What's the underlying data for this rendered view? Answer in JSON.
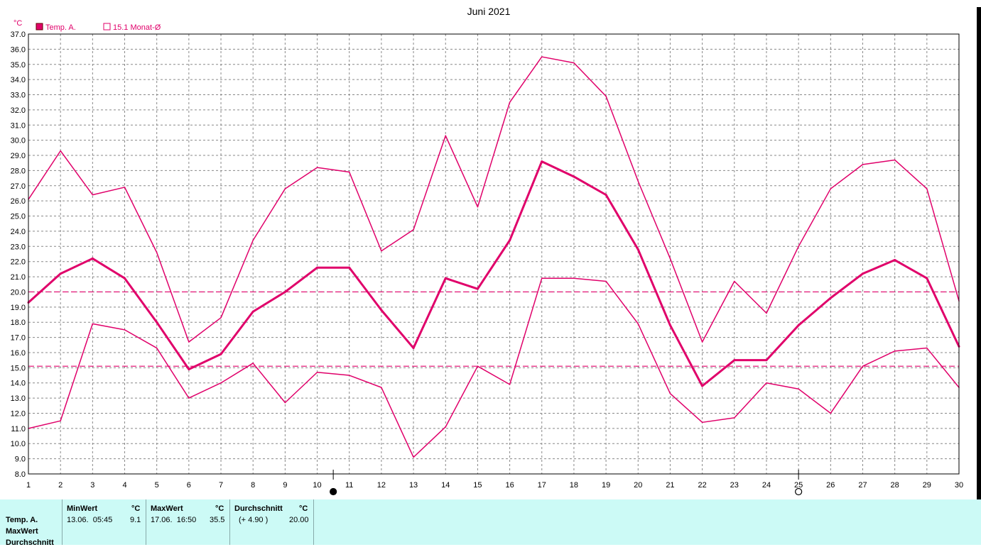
{
  "chart_data": {
    "type": "line",
    "title": "Juni 2021",
    "unit": "°C",
    "ylim": [
      8.0,
      37.0
    ],
    "yticks": [
      8.0,
      9.0,
      10.0,
      11.0,
      12.0,
      13.0,
      14.0,
      15.0,
      16.0,
      17.0,
      18.0,
      19.0,
      20.0,
      21.0,
      22.0,
      23.0,
      24.0,
      25.0,
      26.0,
      27.0,
      28.0,
      29.0,
      30.0,
      31.0,
      32.0,
      33.0,
      34.0,
      35.0,
      36.0,
      37.0
    ],
    "x": [
      1,
      2,
      3,
      4,
      5,
      6,
      7,
      8,
      9,
      10,
      11,
      12,
      13,
      14,
      15,
      16,
      17,
      18,
      19,
      20,
      21,
      22,
      23,
      24,
      25,
      26,
      27,
      28,
      29,
      30
    ],
    "grid": true,
    "legend": [
      {
        "label": "Temp. A.",
        "color": "#e0006a",
        "filled": true
      },
      {
        "label": "15.1 Monat-Ø",
        "color": "#e0006a",
        "filled": false
      }
    ],
    "series": [
      {
        "role": "max",
        "width": 1.5,
        "values": [
          26.1,
          29.3,
          26.4,
          26.9,
          22.6,
          16.7,
          18.3,
          23.4,
          26.8,
          28.2,
          27.9,
          22.7,
          24.1,
          30.3,
          25.6,
          32.5,
          35.5,
          35.1,
          32.9,
          27.3,
          22.2,
          16.7,
          20.7,
          18.6,
          23.0,
          26.8,
          28.4,
          28.7,
          26.8,
          19.4
        ]
      },
      {
        "role": "avg",
        "width": 3,
        "values": [
          19.3,
          21.2,
          22.2,
          20.9,
          18.0,
          14.9,
          15.9,
          18.7,
          20.0,
          21.6,
          21.6,
          18.8,
          16.3,
          20.9,
          20.2,
          23.4,
          28.6,
          27.6,
          26.4,
          22.8,
          17.8,
          13.8,
          15.5,
          15.5,
          17.8,
          19.6,
          21.2,
          22.1,
          20.9,
          16.4
        ]
      },
      {
        "role": "min",
        "width": 1.5,
        "values": [
          11.0,
          11.5,
          17.9,
          17.5,
          16.3,
          13.0,
          14.0,
          15.3,
          12.7,
          14.7,
          14.5,
          13.7,
          9.1,
          11.1,
          15.1,
          13.9,
          20.9,
          20.9,
          20.7,
          17.9,
          13.3,
          11.4,
          11.7,
          14.0,
          13.6,
          12.0,
          15.1,
          16.1,
          16.3,
          13.7
        ]
      }
    ],
    "reference_lines": [
      {
        "value": 20.0,
        "style": "dashed",
        "color": "#e0006a"
      },
      {
        "value": 15.1,
        "style": "dashed",
        "color": "#e0006a"
      }
    ],
    "moon_phases": [
      {
        "x": 10.5,
        "symbol": "●"
      },
      {
        "x": 25.0,
        "symbol": "○"
      }
    ]
  },
  "info_panel": {
    "row_labels": [
      "Temp. A.",
      "MaxWert",
      "Durchschnitt"
    ],
    "min_header": "MinWert",
    "min_unit": "°C",
    "min_time": "13.06.  05:45",
    "min_value": "9.1",
    "max_header": "MaxWert",
    "max_unit": "°C",
    "max_time": "17.06.  16:50",
    "max_value": "35.5",
    "avg_header": "Durchschnitt",
    "avg_unit": "°C",
    "avg_delta": "(+ 4.90 )",
    "avg_value": "20.00"
  },
  "colors": {
    "series": "#e0006a",
    "panel_bg": "#ccfaf6",
    "grid": "#888888"
  }
}
